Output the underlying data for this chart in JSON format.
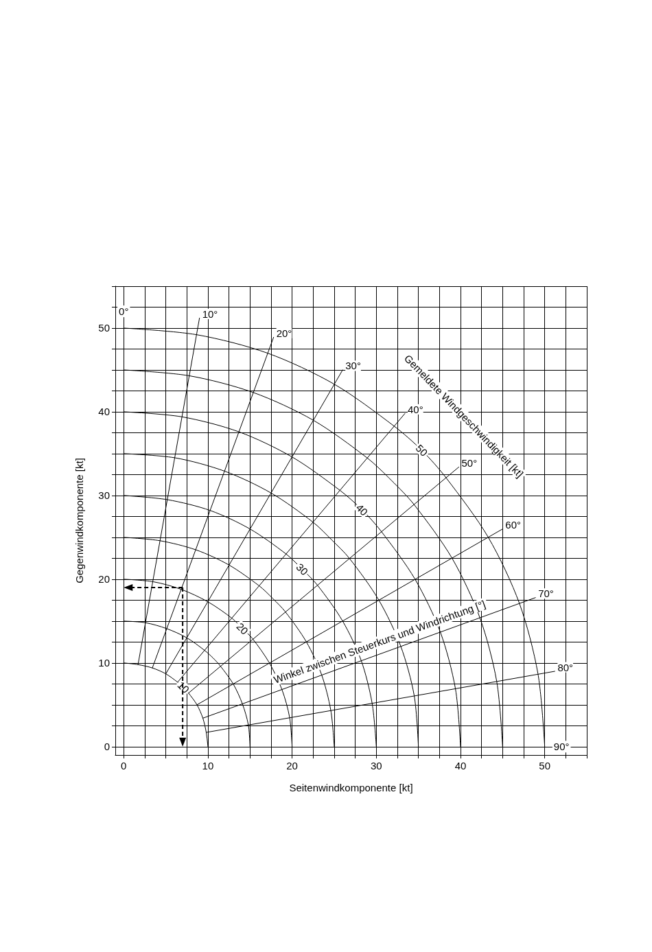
{
  "chart_data": {
    "type": "line",
    "xlabel": "Seitenwindkomponente [kt]",
    "ylabel": "Gegenwindkomponente [kt]",
    "xlim": [
      -1,
      55
    ],
    "ylim": [
      -1,
      55
    ],
    "xticks": [
      0,
      {
        "value": 2.5,
        "label": null
      },
      {
        "value": 5,
        "label": null
      },
      {
        "value": 7.5,
        "label": null
      },
      10,
      {
        "value": 12.5,
        "label": null
      },
      {
        "value": 15,
        "label": null
      },
      {
        "value": 17.5,
        "label": null
      },
      20,
      {
        "value": 22.5,
        "label": null
      },
      {
        "value": 25,
        "label": null
      },
      {
        "value": 27.5,
        "label": null
      },
      30,
      {
        "value": 32.5,
        "label": null
      },
      {
        "value": 35,
        "label": null
      },
      {
        "value": 37.5,
        "label": null
      },
      40,
      {
        "value": 42.5,
        "label": null
      },
      {
        "value": 45,
        "label": null
      },
      {
        "value": 47.5,
        "label": null
      },
      50,
      {
        "value": 52.5,
        "label": null
      },
      {
        "value": 55,
        "label": null
      }
    ],
    "yticks": [
      0,
      {
        "value": 2.5,
        "label": null
      },
      {
        "value": 5,
        "label": null
      },
      {
        "value": 7.5,
        "label": null
      },
      10,
      {
        "value": 12.5,
        "label": null
      },
      {
        "value": 15,
        "label": null
      },
      {
        "value": 17.5,
        "label": null
      },
      20,
      {
        "value": 22.5,
        "label": null
      },
      {
        "value": 25,
        "label": null
      },
      {
        "value": 27.5,
        "label": null
      },
      30,
      {
        "value": 32.5,
        "label": null
      },
      {
        "value": 35,
        "label": null
      },
      {
        "value": 37.5,
        "label": null
      },
      40,
      {
        "value": 42.5,
        "label": null
      },
      {
        "value": 45,
        "label": null
      },
      {
        "value": 47.5,
        "label": null
      },
      50,
      {
        "value": 52.5,
        "label": null
      },
      {
        "value": 55,
        "label": null
      }
    ],
    "grid": true,
    "legend": false,
    "marker": "none",
    "line_style": "solid",
    "series": [
      {
        "name": "10",
        "color": "#000000",
        "x": [
          0,
          1.7,
          3.4,
          5,
          6.4,
          7.1,
          7.7,
          8.7,
          9.4,
          9.8,
          10
        ],
        "values": [
          10,
          9.8,
          9.4,
          8.7,
          7.7,
          7.1,
          6.4,
          5,
          3.4,
          1.7,
          0
        ]
      },
      {
        "color": "#000000",
        "x": [
          0,
          2.6,
          5.1,
          7.5,
          9.6,
          10.6,
          11.5,
          13,
          14.1,
          14.8,
          15
        ],
        "values": [
          15,
          14.8,
          14.1,
          13,
          11.5,
          10.6,
          9.6,
          7.5,
          5.1,
          2.6,
          0
        ]
      },
      {
        "name": "20",
        "color": "#000000",
        "x": [
          0,
          3.5,
          6.8,
          10,
          12.9,
          14.1,
          15.3,
          17.3,
          18.8,
          19.7,
          20
        ],
        "values": [
          20,
          19.7,
          18.8,
          17.3,
          15.3,
          14.1,
          12.9,
          10,
          6.8,
          3.5,
          0
        ]
      },
      {
        "color": "#000000",
        "x": [
          0,
          4.3,
          8.6,
          12.5,
          16.1,
          17.7,
          19.2,
          21.7,
          23.5,
          24.6,
          25
        ],
        "values": [
          25,
          24.6,
          23.5,
          21.7,
          19.2,
          17.7,
          16.1,
          12.5,
          8.6,
          4.3,
          0
        ]
      },
      {
        "name": "30",
        "color": "#000000",
        "x": [
          0,
          5.2,
          10.3,
          15,
          19.3,
          21.2,
          23,
          26,
          28.2,
          29.5,
          30
        ],
        "values": [
          30,
          29.5,
          28.2,
          26,
          23,
          21.2,
          19.3,
          15,
          10.3,
          5.2,
          0
        ]
      },
      {
        "color": "#000000",
        "x": [
          0,
          6.1,
          12,
          17.5,
          22.5,
          24.7,
          26.8,
          30.3,
          32.9,
          34.5,
          35
        ],
        "values": [
          35,
          34.5,
          32.9,
          30.3,
          26.8,
          24.7,
          22.5,
          17.5,
          12,
          6.1,
          0
        ]
      },
      {
        "name": "40",
        "color": "#000000",
        "x": [
          0,
          6.9,
          13.7,
          20,
          25.7,
          28.3,
          30.6,
          34.6,
          37.6,
          39.4,
          40
        ],
        "values": [
          40,
          39.4,
          37.6,
          34.6,
          30.6,
          28.3,
          25.7,
          20,
          13.7,
          6.9,
          0
        ]
      },
      {
        "color": "#000000",
        "x": [
          0,
          7.8,
          15.4,
          22.5,
          28.9,
          31.8,
          34.5,
          39,
          42.3,
          44.3,
          45
        ],
        "values": [
          45,
          44.3,
          42.3,
          39,
          34.5,
          31.8,
          28.9,
          22.5,
          15.4,
          7.8,
          0
        ]
      },
      {
        "name": "50",
        "color": "#000000",
        "x": [
          0,
          8.7,
          17.1,
          25,
          32.1,
          35.4,
          38.3,
          43.3,
          47,
          49.2,
          50
        ],
        "values": [
          50,
          49.2,
          47,
          43.3,
          38.3,
          35.4,
          32.1,
          25,
          17.1,
          8.7,
          0
        ]
      },
      {
        "name": "10°",
        "color": "#000000",
        "x": [
          1.7,
          9.0
        ],
        "values": [
          9.8,
          51.2
        ]
      },
      {
        "name": "20°",
        "color": "#000000",
        "x": [
          3.4,
          17.8
        ],
        "values": [
          9.4,
          48.9
        ]
      },
      {
        "name": "30°",
        "color": "#000000",
        "x": [
          5,
          26
        ],
        "values": [
          8.7,
          45
        ]
      },
      {
        "name": "40°",
        "color": "#000000",
        "x": [
          6.4,
          33.4
        ],
        "values": [
          7.7,
          39.8
        ]
      },
      {
        "name": "50°",
        "color": "#000000",
        "x": [
          7.7,
          39.8
        ],
        "values": [
          6.4,
          33.4
        ]
      },
      {
        "name": "60°",
        "color": "#000000",
        "x": [
          8.7,
          45
        ],
        "values": [
          5,
          26
        ]
      },
      {
        "name": "70°",
        "color": "#000000",
        "x": [
          9.4,
          48.9
        ],
        "values": [
          3.4,
          17.8
        ]
      },
      {
        "name": "80°",
        "color": "#000000",
        "x": [
          9.8,
          51.2
        ],
        "values": [
          1.7,
          9.0
        ]
      }
    ],
    "annotations": [
      {
        "text": "0°",
        "x": 0,
        "y": 52
      },
      {
        "text": "90°",
        "x": 52,
        "y": 0
      },
      "Gemeldete Windgeschwindigkeit [kt]",
      "Winkel zwischen Steuerkurs und Windrichtung [°]"
    ]
  }
}
